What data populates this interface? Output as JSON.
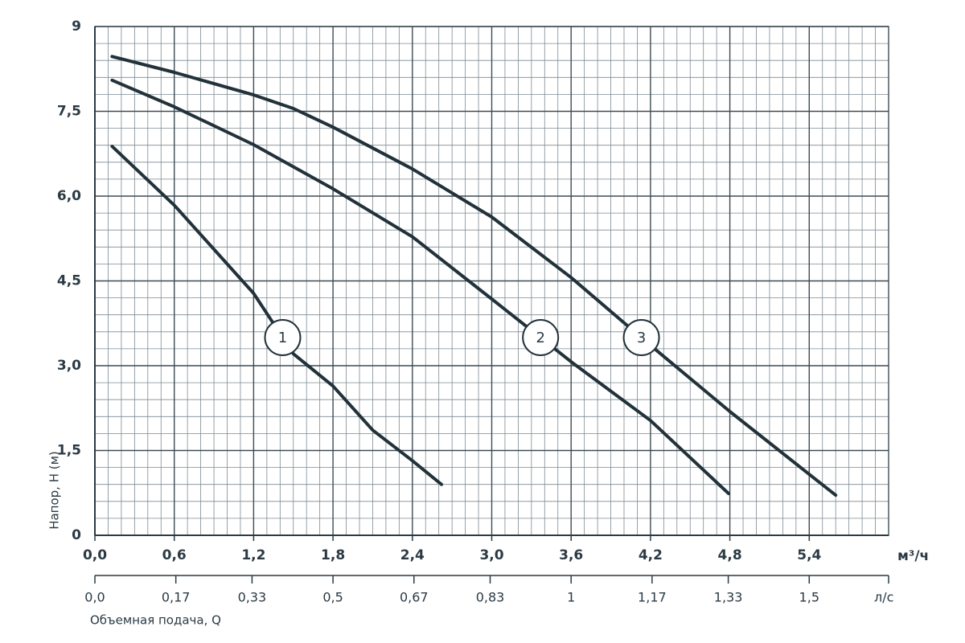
{
  "chart_data": {
    "type": "line",
    "x_label": "Объемная подача, Q",
    "y_label": "Напор, H (м)",
    "x_unit": "м³/ч",
    "x2_unit": "л/с",
    "xlim": [
      0,
      6
    ],
    "xticks": [
      {
        "value": 0,
        "label": "0,0"
      },
      {
        "value": 0.6,
        "label": "0,6"
      },
      {
        "value": 1.2,
        "label": "1,2"
      },
      {
        "value": 1.8,
        "label": "1,8"
      },
      {
        "value": 2.4,
        "label": "2,4"
      },
      {
        "value": 3.0,
        "label": "3,0"
      },
      {
        "value": 3.6,
        "label": "3,6"
      },
      {
        "value": 4.2,
        "label": "4,2"
      },
      {
        "value": 4.8,
        "label": "4,8"
      },
      {
        "value": 5.4,
        "label": "5,4"
      }
    ],
    "x2lim": [
      0,
      1.6667
    ],
    "x2ticks": [
      {
        "value": 0,
        "label": "0,0"
      },
      {
        "value": 0.17,
        "label": "0,17"
      },
      {
        "value": 0.33,
        "label": "0,33"
      },
      {
        "value": 0.5,
        "label": "0,5"
      },
      {
        "value": 0.67,
        "label": "0,67"
      },
      {
        "value": 0.83,
        "label": "0,83"
      },
      1,
      {
        "value": 1.17,
        "label": "1,17"
      },
      {
        "value": 1.33,
        "label": "1,33"
      },
      {
        "value": 1.5,
        "label": "1,5"
      }
    ],
    "ylim": [
      0,
      9
    ],
    "yticks": [
      0,
      {
        "value": 1.5,
        "label": "1,5"
      },
      {
        "value": 3.0,
        "label": "3,0"
      },
      {
        "value": 4.5,
        "label": "4,5"
      },
      {
        "value": 6.0,
        "label": "6,0"
      },
      {
        "value": 7.5,
        "label": "7,5"
      },
      9
    ],
    "grid": true,
    "minor_divisions": {
      "x": 6,
      "y": 5
    },
    "series": [
      {
        "name": "1",
        "color": "#22323a",
        "x": [
          0.13,
          0.6,
          1.2,
          1.5,
          1.8,
          2.1,
          2.4,
          2.62
        ],
        "values": [
          6.88,
          5.84,
          4.28,
          3.21,
          2.64,
          1.86,
          1.32,
          0.9
        ]
      },
      {
        "name": "2",
        "color": "#22323a",
        "x": [
          0.13,
          0.6,
          1.2,
          1.8,
          2.4,
          3.0,
          3.6,
          4.2,
          4.79
        ],
        "values": [
          8.05,
          7.58,
          6.91,
          6.13,
          5.28,
          4.18,
          3.07,
          2.03,
          0.74
        ]
      },
      {
        "name": "3",
        "color": "#22323a",
        "x": [
          0.13,
          0.6,
          1.2,
          1.5,
          1.8,
          2.4,
          3.0,
          3.6,
          4.2,
          4.8,
          5.6
        ],
        "values": [
          8.47,
          8.19,
          7.79,
          7.55,
          7.22,
          6.48,
          5.63,
          4.56,
          3.36,
          2.19,
          0.71
        ]
      }
    ]
  }
}
